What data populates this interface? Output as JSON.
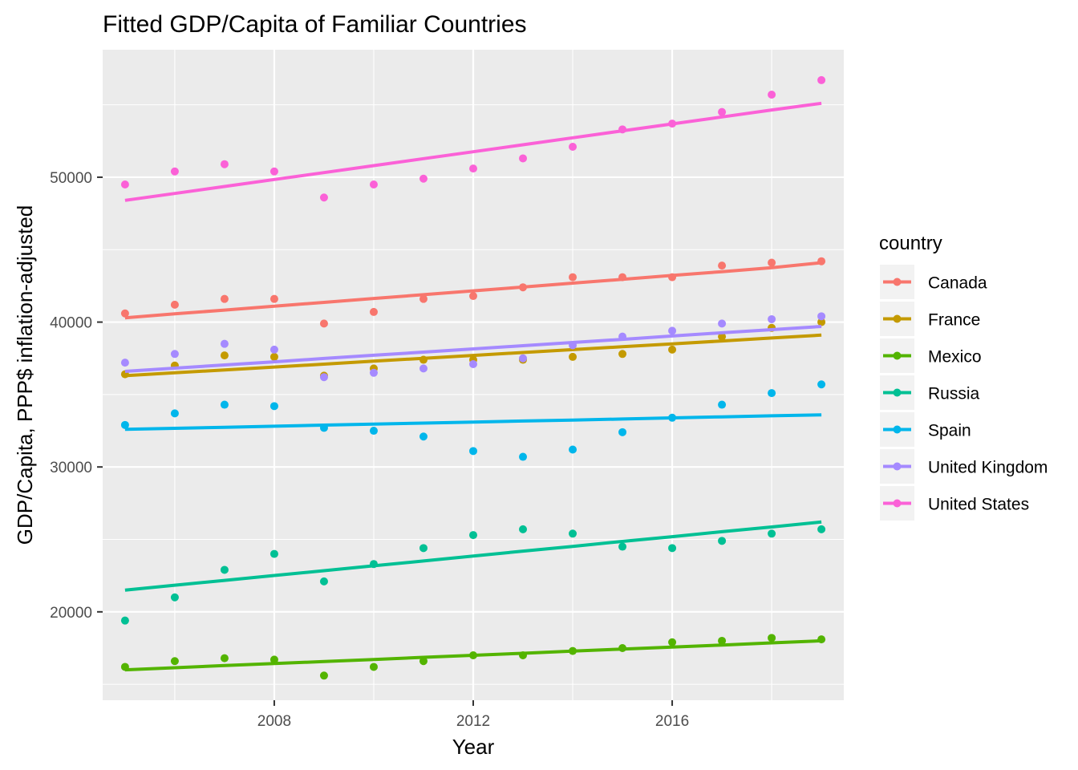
{
  "chart_data": {
    "type": "scatter",
    "title": "Fitted GDP/Capita of Familiar Countries",
    "xlabel": "Year",
    "ylabel": "GDP/Capita, PPP$ inflation-adjusted",
    "xlim": [
      2004.55,
      2019.45
    ],
    "ylim": [
      13900,
      58800
    ],
    "x_ticks": [
      2008,
      2012,
      2016
    ],
    "x_tick_labels": [
      "2008",
      "2012",
      "2016"
    ],
    "y_ticks": [
      20000,
      30000,
      40000,
      50000
    ],
    "y_tick_labels": [
      "20000",
      "30000",
      "40000",
      "50000"
    ],
    "grid": true,
    "legend": {
      "title": "country",
      "position": "right"
    },
    "x": [
      2005,
      2006,
      2007,
      2008,
      2009,
      2010,
      2011,
      2012,
      2013,
      2014,
      2015,
      2016,
      2017,
      2018,
      2019
    ],
    "series": [
      {
        "name": "Canada",
        "color": "#F8766D",
        "values": [
          40600,
          41200,
          41600,
          41600,
          39900,
          40700,
          41600,
          41800,
          42400,
          43100,
          43100,
          43100,
          43900,
          44100,
          44200
        ],
        "fit": [
          40300,
          40570,
          40830,
          41100,
          41360,
          41630,
          41890,
          42160,
          42420,
          42690,
          42950,
          43220,
          43480,
          43750,
          44100
        ]
      },
      {
        "name": "France",
        "color": "#C49A00",
        "values": [
          36400,
          37000,
          37700,
          37600,
          36300,
          36800,
          37400,
          37400,
          37400,
          37600,
          37800,
          38100,
          39000,
          39600,
          40000
        ],
        "fit": [
          36300,
          36500,
          36700,
          36900,
          37100,
          37300,
          37500,
          37700,
          37900,
          38100,
          38300,
          38500,
          38700,
          38900,
          39100
        ]
      },
      {
        "name": "Mexico",
        "color": "#53B400",
        "values": [
          16200,
          16600,
          16800,
          16700,
          15600,
          16200,
          16600,
          17000,
          17000,
          17300,
          17500,
          17900,
          18000,
          18200,
          18100
        ],
        "fit": [
          16000,
          16140,
          16290,
          16430,
          16570,
          16710,
          16860,
          17000,
          17140,
          17290,
          17430,
          17570,
          17710,
          17860,
          18000
        ]
      },
      {
        "name": "Russia",
        "color": "#00C094",
        "values": [
          19400,
          21000,
          22900,
          24000,
          22100,
          23300,
          24400,
          25300,
          25700,
          25400,
          24500,
          24400,
          24900,
          25400,
          25700
        ],
        "fit": [
          21500,
          21840,
          22170,
          22510,
          22840,
          23180,
          23510,
          23850,
          24190,
          24520,
          24860,
          25190,
          25530,
          25860,
          26200
        ]
      },
      {
        "name": "Spain",
        "color": "#00B6EB",
        "values": [
          32900,
          33700,
          34300,
          34200,
          32700,
          32500,
          32100,
          31100,
          30700,
          31200,
          32400,
          33400,
          34300,
          35100,
          35700
        ],
        "fit": [
          32600,
          32670,
          32740,
          32810,
          32890,
          32960,
          33030,
          33100,
          33170,
          33240,
          33310,
          33390,
          33460,
          33530,
          33600
        ]
      },
      {
        "name": "United Kingdom",
        "color": "#A58AFF",
        "values": [
          37200,
          37800,
          38500,
          38100,
          36200,
          36500,
          36800,
          37100,
          37500,
          38400,
          39000,
          39400,
          39900,
          40200,
          40400
        ],
        "fit": [
          36600,
          36820,
          37040,
          37260,
          37490,
          37710,
          37930,
          38150,
          38370,
          38590,
          38810,
          39040,
          39260,
          39480,
          39700
        ]
      },
      {
        "name": "United States",
        "color": "#FB61D7",
        "values": [
          49500,
          50400,
          50900,
          50400,
          48600,
          49500,
          49900,
          50600,
          51300,
          52100,
          53300,
          53700,
          54500,
          55700,
          56700
        ],
        "fit": [
          48400,
          48880,
          49360,
          49840,
          50320,
          50800,
          51280,
          51760,
          52240,
          52720,
          53200,
          53680,
          54160,
          54640,
          55100
        ]
      }
    ]
  }
}
